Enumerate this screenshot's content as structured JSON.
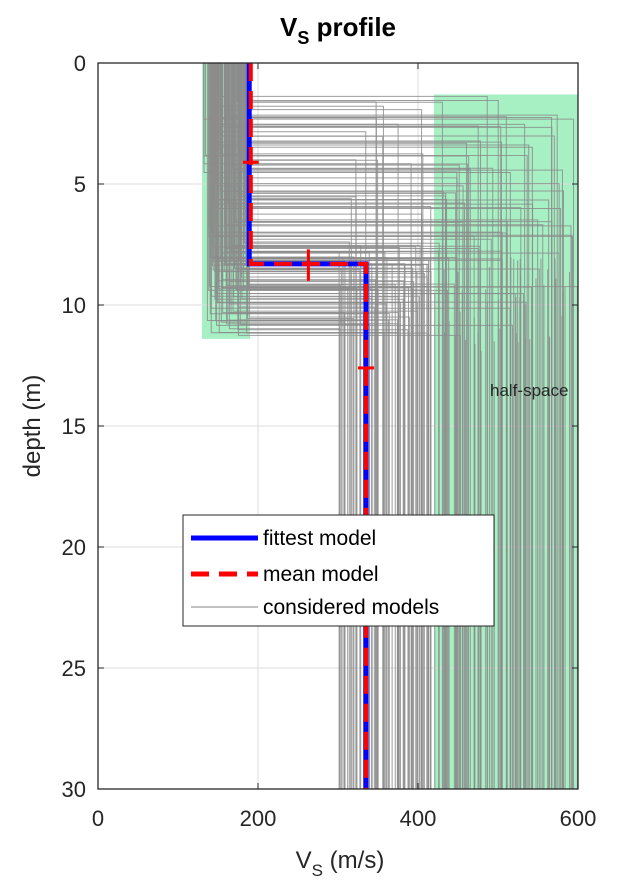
{
  "chart_data": {
    "type": "line",
    "title": {
      "main": "V",
      "sub": "S",
      "rest": " profile"
    },
    "xlabel": {
      "main": "V",
      "sub": "S",
      "rest": " (m/s)"
    },
    "ylabel": "depth (m)",
    "xlim": [
      0,
      600
    ],
    "ylim": [
      0,
      30
    ],
    "y_reversed": true,
    "grid": true,
    "x_ticks": [
      0,
      200,
      400,
      600
    ],
    "y_ticks": [
      0,
      5,
      10,
      15,
      20,
      25,
      30
    ],
    "search_space": {
      "layer1": {
        "vs_range": [
          130,
          190
        ],
        "depth_range": [
          0,
          11.4
        ]
      },
      "halfspace": {
        "vs_range": [
          420,
          600
        ],
        "depth_from": 1.3
      }
    },
    "series": [
      {
        "name": "fittest model",
        "color": "#0000ff",
        "style": "solid",
        "vs": [
          189,
          189,
          335,
          335
        ],
        "depth": [
          0,
          8.3,
          8.3,
          30
        ]
      },
      {
        "name": "mean model",
        "color": "#ff0000",
        "style": "dashed",
        "vs": [
          191,
          191,
          335,
          335
        ],
        "depth": [
          0,
          8.3,
          8.3,
          30
        ],
        "error_bars": [
          {
            "vs": 191,
            "depth": 4.1,
            "dir": "depth"
          },
          {
            "vs": 263,
            "depth": 8.3,
            "dir": "vs",
            "span": [
              7.7,
              9.0
            ]
          },
          {
            "vs": 335,
            "depth": 12.6,
            "dir": "depth"
          }
        ]
      },
      {
        "name": "considered models",
        "color": "#808080",
        "style": "thin"
      }
    ],
    "annotation": "half-space",
    "legend_placement": "lower-center"
  }
}
